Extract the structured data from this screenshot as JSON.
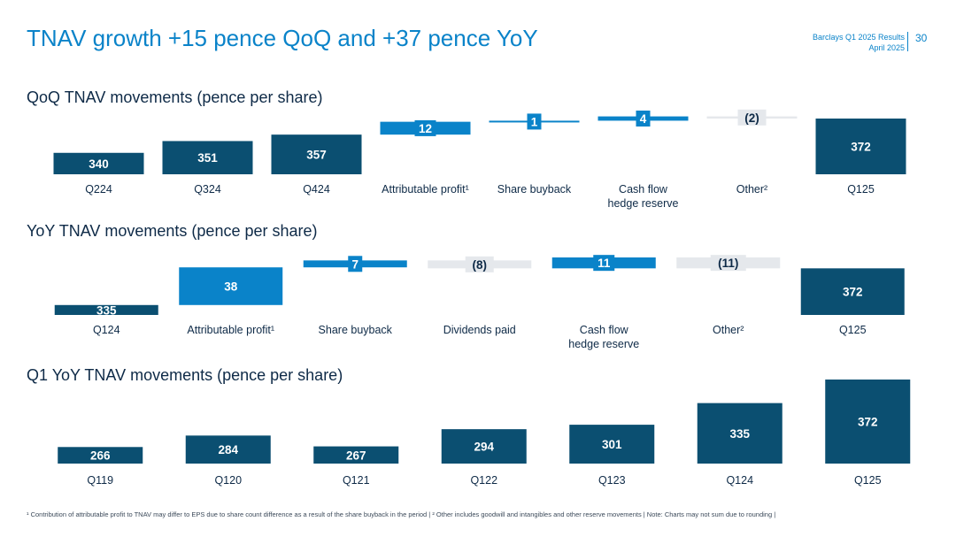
{
  "title": "TNAV growth +15 pence QoQ and +37 pence YoY",
  "header": {
    "report": "Barclays Q1 2025 Results",
    "date": "April 2025",
    "page": "30"
  },
  "colors": {
    "bar": "#0b4f71",
    "accent": "#0a83c9",
    "negative": "#e5e8ec",
    "text": "#0e2a47"
  },
  "chart_data": [
    {
      "type": "bar",
      "subtype": "waterfall",
      "title": "QoQ TNAV movements (pence per share)",
      "categories": [
        "Q224",
        "Q324",
        "Q424",
        "Attributable profit¹",
        "Share buyback",
        "Cash flow hedge reserve",
        "Other²",
        "Q125"
      ],
      "values": [
        340,
        351,
        357,
        12,
        1,
        4,
        -2,
        372
      ],
      "labels": [
        "340",
        "351",
        "357",
        "12",
        "1",
        "4",
        "(2)",
        "372"
      ],
      "kinds": [
        "total",
        "total",
        "total",
        "delta",
        "delta",
        "delta",
        "delta",
        "total"
      ]
    },
    {
      "type": "bar",
      "subtype": "waterfall",
      "title": "YoY TNAV movements (pence per share)",
      "categories": [
        "Q124",
        "Attributable profit¹",
        "Share buyback",
        "Dividends paid",
        "Cash flow hedge reserve",
        "Other²",
        "Q125"
      ],
      "values": [
        335,
        38,
        7,
        -8,
        11,
        -11,
        372
      ],
      "labels": [
        "335",
        "38",
        "7",
        "(8)",
        "11",
        "(11)",
        "372"
      ],
      "kinds": [
        "total",
        "delta",
        "delta",
        "delta",
        "delta",
        "delta",
        "total"
      ]
    },
    {
      "type": "bar",
      "title": "Q1 YoY TNAV movements (pence per share)",
      "categories": [
        "Q119",
        "Q120",
        "Q121",
        "Q122",
        "Q123",
        "Q124",
        "Q125"
      ],
      "values": [
        266,
        284,
        267,
        294,
        301,
        335,
        372
      ],
      "labels": [
        "266",
        "284",
        "267",
        "294",
        "301",
        "335",
        "372"
      ]
    }
  ],
  "footnote": "¹ Contribution of attributable profit to TNAV may differ to EPS due to share count difference as a result of the share buyback in the period | ² Other includes goodwill and intangibles and other reserve movements | Note: Charts may not sum due to rounding |"
}
